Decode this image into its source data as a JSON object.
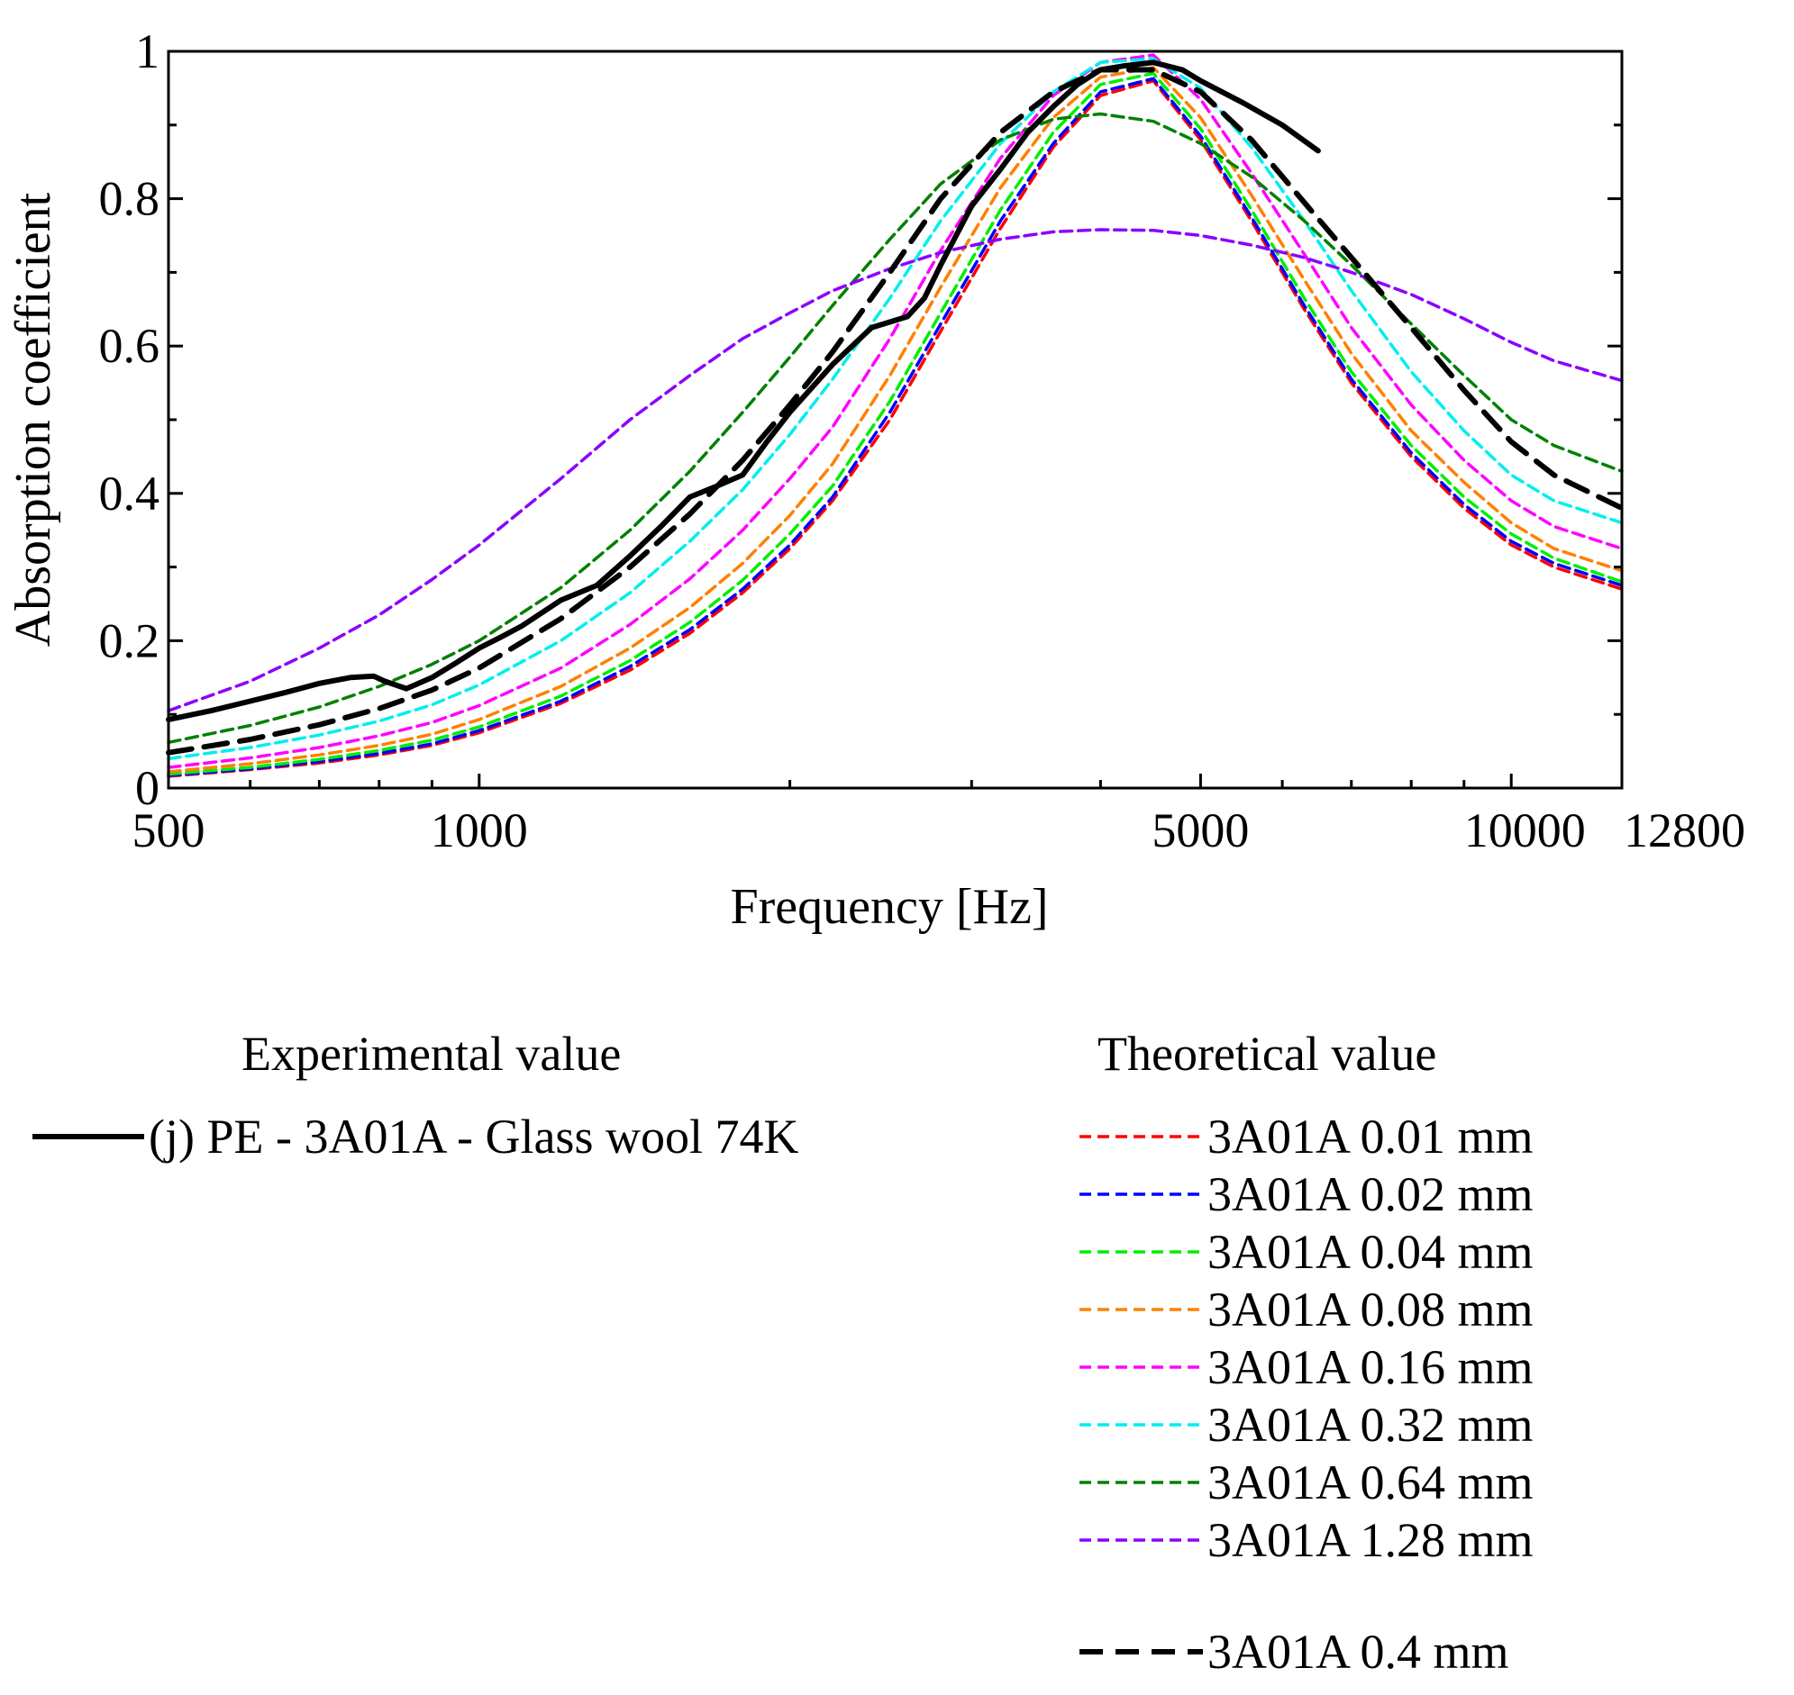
{
  "chart_data": {
    "type": "line",
    "title": "",
    "xlabel": "Frequency [Hz]",
    "ylabel": "Absorption coefficient",
    "xscale": "log",
    "xlim": [
      500,
      12800
    ],
    "ylim": [
      0,
      1
    ],
    "xticks": [
      {
        "value": 500,
        "label": "500"
      },
      {
        "value": 1000,
        "label": "1000"
      },
      {
        "value": 5000,
        "label": "5000"
      },
      {
        "value": 10000,
        "label": "10000"
      },
      {
        "value": 12800,
        "label": "12800"
      }
    ],
    "yticks": [
      {
        "value": 0,
        "label": "0"
      },
      {
        "value": 0.2,
        "label": "0.2"
      },
      {
        "value": 0.4,
        "label": "0.4"
      },
      {
        "value": 0.6,
        "label": "0.6"
      },
      {
        "value": 0.8,
        "label": "0.8"
      },
      {
        "value": 1,
        "label": "1"
      }
    ],
    "grid": false,
    "legend": {
      "experimental_title": "Experimental value",
      "theoretical_title": "Theoretical value",
      "placement": "below"
    },
    "series": [
      {
        "name": "3A01A 0.01 mm",
        "group": "theoretical",
        "color": "#ff0000",
        "style": "dashed",
        "x": [
          500,
          600,
          700,
          800,
          900,
          1000,
          1200,
          1400,
          1600,
          1800,
          2000,
          2200,
          2500,
          2800,
          3200,
          3600,
          4000,
          4500,
          5000,
          5600,
          6300,
          7000,
          8000,
          9000,
          10000,
          11000,
          12800
        ],
        "y": [
          0.016,
          0.025,
          0.034,
          0.045,
          0.058,
          0.075,
          0.115,
          0.16,
          0.21,
          0.265,
          0.325,
          0.39,
          0.5,
          0.62,
          0.76,
          0.87,
          0.94,
          0.96,
          0.88,
          0.77,
          0.65,
          0.55,
          0.45,
          0.38,
          0.33,
          0.3,
          0.27
        ]
      },
      {
        "name": "3A01A 0.02 mm",
        "group": "theoretical",
        "color": "#0000ff",
        "style": "dashed",
        "x": [
          500,
          600,
          700,
          800,
          900,
          1000,
          1200,
          1400,
          1600,
          1800,
          2000,
          2200,
          2500,
          2800,
          3200,
          3600,
          4000,
          4500,
          5000,
          5600,
          6300,
          7000,
          8000,
          9000,
          10000,
          11000,
          12800
        ],
        "y": [
          0.017,
          0.026,
          0.036,
          0.047,
          0.06,
          0.078,
          0.118,
          0.165,
          0.215,
          0.27,
          0.33,
          0.395,
          0.51,
          0.63,
          0.77,
          0.875,
          0.945,
          0.963,
          0.885,
          0.775,
          0.655,
          0.555,
          0.455,
          0.385,
          0.335,
          0.305,
          0.275
        ]
      },
      {
        "name": "3A01A 0.04 mm",
        "group": "theoretical",
        "color": "#00ee00",
        "style": "dashed",
        "x": [
          500,
          600,
          700,
          800,
          900,
          1000,
          1200,
          1400,
          1600,
          1800,
          2000,
          2200,
          2500,
          2800,
          3200,
          3600,
          4000,
          4500,
          5000,
          5600,
          6300,
          7000,
          8000,
          9000,
          10000,
          11000,
          12800
        ],
        "y": [
          0.019,
          0.028,
          0.039,
          0.051,
          0.065,
          0.083,
          0.125,
          0.173,
          0.225,
          0.282,
          0.345,
          0.41,
          0.525,
          0.645,
          0.785,
          0.89,
          0.955,
          0.97,
          0.895,
          0.785,
          0.665,
          0.565,
          0.465,
          0.395,
          0.345,
          0.312,
          0.28
        ]
      },
      {
        "name": "3A01A 0.08 mm",
        "group": "theoretical",
        "color": "#ff8000",
        "style": "dashed",
        "x": [
          500,
          600,
          700,
          800,
          900,
          1000,
          1200,
          1400,
          1600,
          1800,
          2000,
          2200,
          2500,
          2800,
          3200,
          3600,
          4000,
          4500,
          5000,
          5600,
          6300,
          7000,
          8000,
          9000,
          10000,
          11000,
          12800
        ],
        "y": [
          0.022,
          0.033,
          0.045,
          0.058,
          0.073,
          0.093,
          0.138,
          0.19,
          0.245,
          0.305,
          0.37,
          0.44,
          0.56,
          0.68,
          0.815,
          0.91,
          0.965,
          0.978,
          0.91,
          0.805,
          0.69,
          0.59,
          0.485,
          0.415,
          0.36,
          0.325,
          0.295
        ]
      },
      {
        "name": "3A01A 0.16 mm",
        "group": "theoretical",
        "color": "#ff00ff",
        "style": "dashed",
        "x": [
          500,
          600,
          700,
          800,
          900,
          1000,
          1200,
          1400,
          1600,
          1800,
          2000,
          2200,
          2500,
          2800,
          3200,
          3600,
          4000,
          4500,
          5000,
          5600,
          6300,
          7000,
          8000,
          9000,
          10000,
          11000,
          12800
        ],
        "y": [
          0.028,
          0.041,
          0.055,
          0.071,
          0.089,
          0.112,
          0.163,
          0.222,
          0.284,
          0.35,
          0.42,
          0.49,
          0.61,
          0.73,
          0.855,
          0.94,
          0.985,
          0.995,
          0.935,
          0.835,
          0.725,
          0.625,
          0.52,
          0.445,
          0.39,
          0.355,
          0.325
        ]
      },
      {
        "name": "3A01A 0.32 mm",
        "group": "theoretical",
        "color": "#00eeee",
        "style": "dashed",
        "x": [
          500,
          600,
          700,
          800,
          900,
          1000,
          1200,
          1400,
          1600,
          1800,
          2000,
          2200,
          2500,
          2800,
          3200,
          3600,
          4000,
          4500,
          5000,
          5600,
          6300,
          7000,
          8000,
          9000,
          10000,
          11000,
          12800
        ],
        "y": [
          0.04,
          0.055,
          0.072,
          0.091,
          0.113,
          0.14,
          0.2,
          0.265,
          0.335,
          0.405,
          0.48,
          0.555,
          0.665,
          0.77,
          0.875,
          0.945,
          0.985,
          0.99,
          0.95,
          0.87,
          0.77,
          0.675,
          0.565,
          0.485,
          0.425,
          0.39,
          0.36
        ]
      },
      {
        "name": "3A01A 0.64 mm",
        "group": "theoretical",
        "color": "#008000",
        "style": "dashed",
        "x": [
          500,
          600,
          700,
          800,
          900,
          1000,
          1200,
          1400,
          1600,
          1800,
          2000,
          2200,
          2500,
          2800,
          3200,
          3600,
          4000,
          4500,
          5000,
          5600,
          6300,
          7000,
          8000,
          9000,
          10000,
          11000,
          12800
        ],
        "y": [
          0.062,
          0.085,
          0.11,
          0.138,
          0.168,
          0.2,
          0.272,
          0.35,
          0.43,
          0.51,
          0.585,
          0.655,
          0.745,
          0.82,
          0.88,
          0.908,
          0.915,
          0.905,
          0.875,
          0.83,
          0.77,
          0.71,
          0.63,
          0.56,
          0.5,
          0.465,
          0.43
        ]
      },
      {
        "name": "3A01A 1.28 mm",
        "group": "theoretical",
        "color": "#8b00ff",
        "style": "dashed",
        "x": [
          500,
          600,
          700,
          800,
          900,
          1000,
          1200,
          1400,
          1600,
          1800,
          2000,
          2200,
          2500,
          2800,
          3200,
          3600,
          4000,
          4500,
          5000,
          5600,
          6300,
          7000,
          8000,
          9000,
          10000,
          11000,
          12800
        ],
        "y": [
          0.105,
          0.145,
          0.19,
          0.235,
          0.283,
          0.33,
          0.42,
          0.5,
          0.56,
          0.61,
          0.645,
          0.675,
          0.705,
          0.727,
          0.745,
          0.755,
          0.758,
          0.757,
          0.75,
          0.737,
          0.72,
          0.7,
          0.67,
          0.637,
          0.605,
          0.58,
          0.553
        ]
      },
      {
        "name": "3A01A 0.4 mm",
        "group": "theoretical-highlight",
        "color": "#000000",
        "style": "thick-dashed",
        "x": [
          500,
          600,
          700,
          800,
          900,
          1000,
          1200,
          1400,
          1600,
          1800,
          2000,
          2200,
          2500,
          2800,
          3200,
          3600,
          4000,
          4500,
          5000,
          5600,
          6300,
          7000,
          8000,
          9000,
          10000,
          11000,
          12800
        ],
        "y": [
          0.048,
          0.066,
          0.086,
          0.108,
          0.133,
          0.163,
          0.23,
          0.3,
          0.372,
          0.445,
          0.52,
          0.592,
          0.7,
          0.8,
          0.89,
          0.945,
          0.975,
          0.975,
          0.945,
          0.88,
          0.795,
          0.72,
          0.625,
          0.54,
          0.47,
          0.425,
          0.38
        ]
      },
      {
        "name": "(j) PE - 3A01A - Glass wool 74K",
        "group": "experimental",
        "color": "#000000",
        "style": "solid",
        "x": [
          500,
          550,
          600,
          650,
          700,
          750,
          790,
          810,
          850,
          900,
          950,
          1000,
          1050,
          1100,
          1200,
          1300,
          1400,
          1500,
          1600,
          1700,
          1800,
          1900,
          2000,
          2200,
          2400,
          2600,
          2700,
          2800,
          3000,
          3200,
          3400,
          3600,
          3800,
          4000,
          4200,
          4500,
          4800,
          5000,
          5500,
          6000,
          6500
        ],
        "y": [
          0.093,
          0.105,
          0.118,
          0.13,
          0.142,
          0.15,
          0.152,
          0.145,
          0.135,
          0.15,
          0.17,
          0.19,
          0.205,
          0.22,
          0.255,
          0.275,
          0.315,
          0.355,
          0.395,
          0.41,
          0.425,
          0.47,
          0.51,
          0.575,
          0.625,
          0.64,
          0.665,
          0.71,
          0.79,
          0.84,
          0.89,
          0.925,
          0.955,
          0.975,
          0.98,
          0.985,
          0.975,
          0.96,
          0.93,
          0.9,
          0.865
        ]
      }
    ]
  }
}
